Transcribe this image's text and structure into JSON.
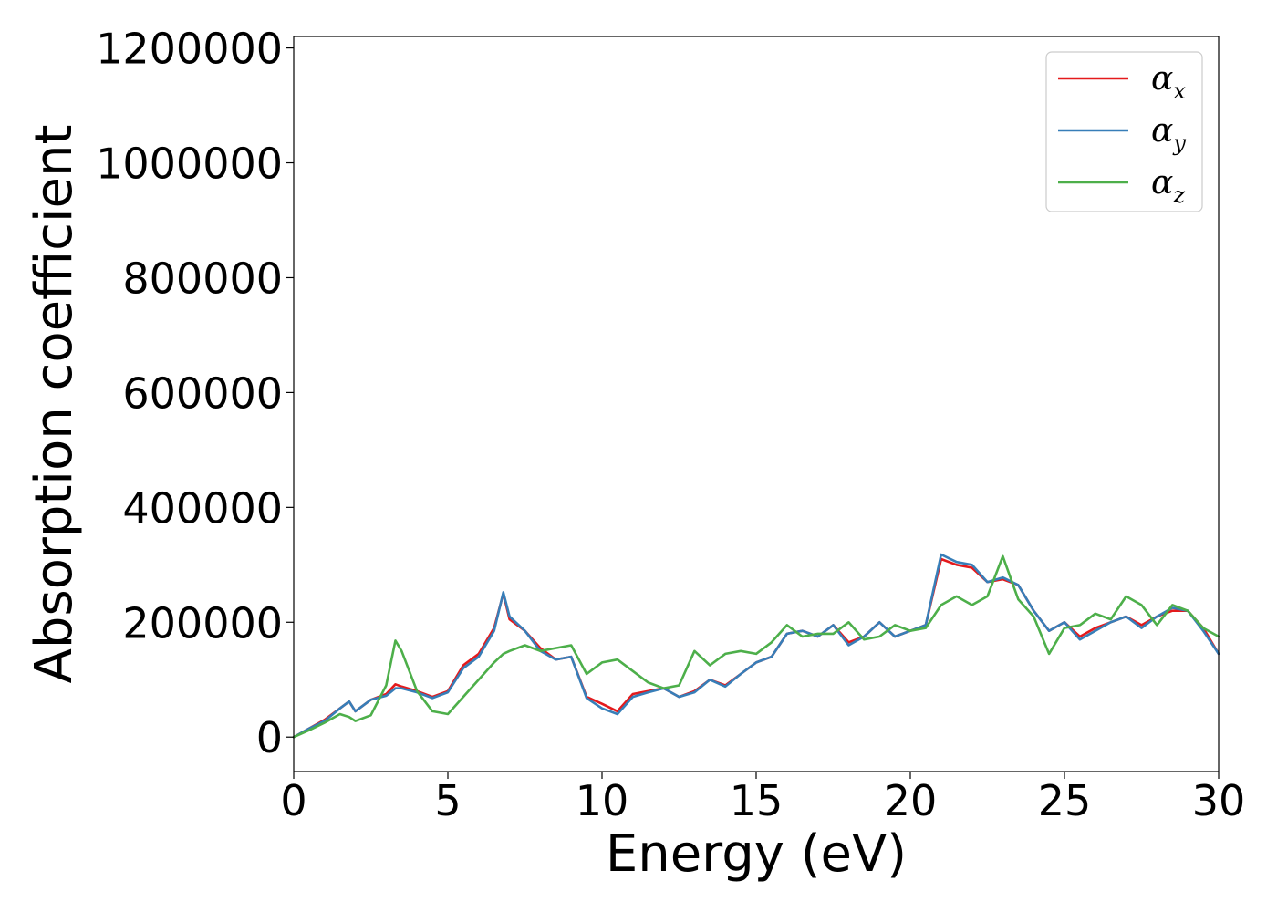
{
  "chart_data": {
    "type": "line",
    "xlabel": "Energy (eV)",
    "ylabel": "Absorption coefficient",
    "xlim": [
      0,
      30
    ],
    "ylim": [
      -60000,
      1220000
    ],
    "xticks": [
      "0",
      "5",
      "10",
      "15",
      "20",
      "25",
      "30"
    ],
    "yticks": [
      "0",
      "200000",
      "400000",
      "600000",
      "800000",
      "1000000",
      "1200000"
    ],
    "grid": false,
    "legend_position": "top-right",
    "x": [
      0,
      0.5,
      1,
      1.5,
      1.8,
      2,
      2.5,
      3,
      3.3,
      3.5,
      4,
      4.5,
      5,
      5.5,
      6,
      6.5,
      6.8,
      7,
      7.5,
      8,
      8.5,
      9,
      9.5,
      10,
      10.5,
      11,
      11.5,
      12,
      12.5,
      13,
      13.5,
      14,
      14.5,
      15,
      15.5,
      16,
      16.5,
      17,
      17.5,
      18,
      18.5,
      19,
      19.5,
      20,
      20.5,
      21,
      21.5,
      22,
      22.5,
      23,
      23.5,
      24,
      24.5,
      25,
      25.5,
      26,
      26.5,
      27,
      27.5,
      28,
      28.5,
      29,
      29.5,
      30
    ],
    "series": [
      {
        "name": "α",
        "subscript": "x",
        "color": "#e41a1c",
        "values": [
          0,
          15000,
          30000,
          50000,
          62000,
          45000,
          65000,
          75000,
          92000,
          88000,
          80000,
          70000,
          80000,
          125000,
          145000,
          190000,
          250000,
          205000,
          185000,
          155000,
          135000,
          140000,
          70000,
          58000,
          45000,
          75000,
          80000,
          85000,
          70000,
          80000,
          100000,
          90000,
          110000,
          130000,
          140000,
          180000,
          185000,
          175000,
          195000,
          165000,
          175000,
          200000,
          175000,
          185000,
          195000,
          310000,
          300000,
          295000,
          270000,
          275000,
          265000,
          220000,
          185000,
          200000,
          175000,
          190000,
          200000,
          210000,
          195000,
          210000,
          220000,
          220000,
          190000,
          145000
        ]
      },
      {
        "name": "α",
        "subscript": "y",
        "color": "#377eb8",
        "values": [
          0,
          15000,
          28000,
          50000,
          62000,
          45000,
          65000,
          72000,
          85000,
          85000,
          78000,
          68000,
          78000,
          120000,
          140000,
          185000,
          252000,
          210000,
          185000,
          150000,
          135000,
          140000,
          68000,
          50000,
          40000,
          70000,
          78000,
          85000,
          70000,
          78000,
          100000,
          88000,
          110000,
          130000,
          140000,
          180000,
          185000,
          175000,
          195000,
          160000,
          175000,
          200000,
          175000,
          185000,
          195000,
          318000,
          305000,
          300000,
          270000,
          278000,
          265000,
          220000,
          185000,
          200000,
          170000,
          185000,
          200000,
          210000,
          190000,
          210000,
          225000,
          220000,
          185000,
          145000
        ]
      },
      {
        "name": "α",
        "subscript": "z",
        "color": "#4daf4a",
        "values": [
          0,
          12000,
          25000,
          40000,
          35000,
          28000,
          38000,
          90000,
          168000,
          150000,
          80000,
          45000,
          40000,
          70000,
          100000,
          130000,
          145000,
          150000,
          160000,
          150000,
          155000,
          160000,
          110000,
          130000,
          135000,
          115000,
          95000,
          85000,
          90000,
          150000,
          125000,
          145000,
          150000,
          145000,
          165000,
          195000,
          175000,
          180000,
          180000,
          200000,
          170000,
          175000,
          195000,
          185000,
          190000,
          230000,
          245000,
          230000,
          245000,
          315000,
          240000,
          210000,
          145000,
          190000,
          195000,
          215000,
          205000,
          245000,
          230000,
          195000,
          230000,
          220000,
          190000,
          175000
        ]
      }
    ]
  }
}
